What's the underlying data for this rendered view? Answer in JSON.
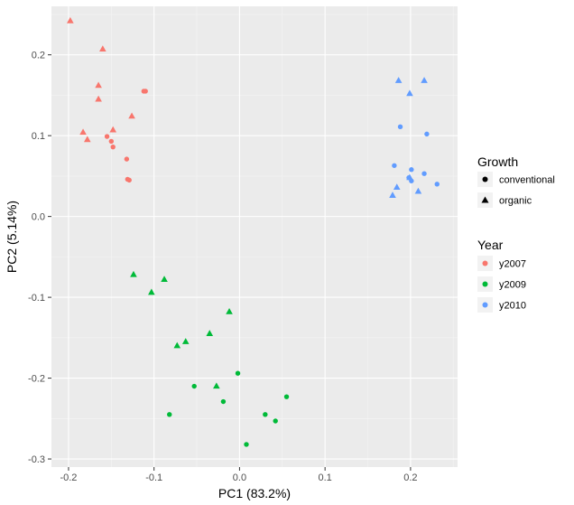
{
  "chart_data": {
    "type": "scatter",
    "xlabel": "PC1 (83.2%)",
    "ylabel": "PC2 (5.14%)",
    "xlim": [
      -0.22,
      0.255
    ],
    "ylim": [
      -0.31,
      0.26
    ],
    "x_ticks": [
      -0.2,
      -0.1,
      0.0,
      0.1,
      0.2
    ],
    "x_tick_labels": [
      "-0.2",
      "-0.1",
      "0.0",
      "0.1",
      "0.2"
    ],
    "y_ticks": [
      -0.3,
      -0.2,
      -0.1,
      0.0,
      0.1,
      0.2
    ],
    "y_tick_labels": [
      "-0.3",
      "-0.2",
      "-0.1",
      "0.0",
      "0.1",
      "0.2"
    ],
    "grid": true,
    "legend_placement": "right",
    "shape_legend": {
      "title": "Growth",
      "items": [
        {
          "label": "conventional",
          "shape": "circle"
        },
        {
          "label": "organic",
          "shape": "triangle"
        }
      ]
    },
    "color_legend": {
      "title": "Year",
      "items": [
        {
          "label": "y2007",
          "color": "#F8766D"
        },
        {
          "label": "y2009",
          "color": "#00BA38"
        },
        {
          "label": "y2010",
          "color": "#619CFF"
        }
      ]
    },
    "series": [
      {
        "year": "y2007",
        "growth": "organic",
        "points": [
          [
            -0.198,
            0.242
          ],
          [
            -0.16,
            0.207
          ],
          [
            -0.165,
            0.162
          ],
          [
            -0.165,
            0.145
          ],
          [
            -0.183,
            0.104
          ],
          [
            -0.178,
            0.095
          ],
          [
            -0.148,
            0.107
          ],
          [
            -0.126,
            0.124
          ]
        ]
      },
      {
        "year": "y2007",
        "growth": "conventional",
        "points": [
          [
            -0.112,
            0.155
          ],
          [
            -0.11,
            0.155
          ],
          [
            -0.155,
            0.099
          ],
          [
            -0.15,
            0.093
          ],
          [
            -0.148,
            0.086
          ],
          [
            -0.132,
            0.071
          ],
          [
            -0.131,
            0.046
          ],
          [
            -0.129,
            0.045
          ]
        ]
      },
      {
        "year": "y2009",
        "growth": "organic",
        "points": [
          [
            -0.124,
            -0.072
          ],
          [
            -0.088,
            -0.078
          ],
          [
            -0.103,
            -0.094
          ],
          [
            -0.012,
            -0.118
          ],
          [
            -0.035,
            -0.145
          ],
          [
            -0.063,
            -0.155
          ],
          [
            -0.073,
            -0.16
          ],
          [
            -0.027,
            -0.21
          ]
        ]
      },
      {
        "year": "y2009",
        "growth": "conventional",
        "points": [
          [
            -0.002,
            -0.194
          ],
          [
            -0.053,
            -0.21
          ],
          [
            0.055,
            -0.223
          ],
          [
            -0.019,
            -0.229
          ],
          [
            -0.082,
            -0.245
          ],
          [
            0.03,
            -0.245
          ],
          [
            0.042,
            -0.253
          ],
          [
            0.008,
            -0.282
          ]
        ]
      },
      {
        "year": "y2010",
        "growth": "organic",
        "points": [
          [
            0.186,
            0.168
          ],
          [
            0.216,
            0.168
          ],
          [
            0.199,
            0.152
          ],
          [
            0.184,
            0.036
          ],
          [
            0.199,
            0.048
          ],
          [
            0.209,
            0.031
          ],
          [
            0.179,
            0.026
          ]
        ]
      },
      {
        "year": "y2010",
        "growth": "conventional",
        "points": [
          [
            0.188,
            0.111
          ],
          [
            0.219,
            0.102
          ],
          [
            0.181,
            0.063
          ],
          [
            0.201,
            0.058
          ],
          [
            0.216,
            0.053
          ],
          [
            0.198,
            0.048
          ],
          [
            0.201,
            0.044
          ],
          [
            0.231,
            0.04
          ]
        ]
      }
    ]
  }
}
